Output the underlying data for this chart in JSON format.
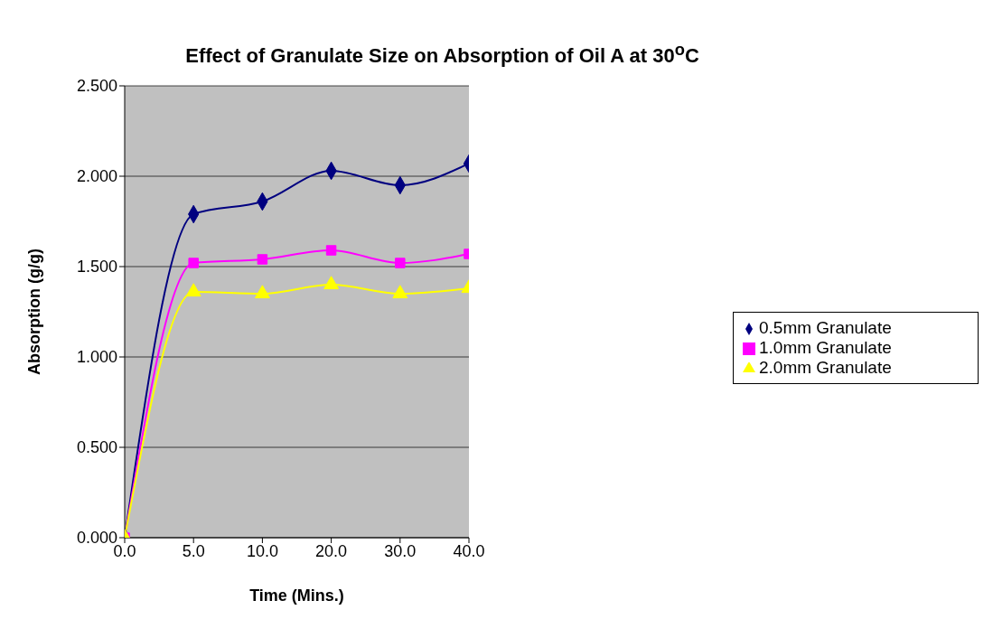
{
  "chart_data": {
    "type": "line",
    "title": "Effect of Granulate Size on Absorption of Oil A at 30$^{o}$C",
    "xlabel": "Time (Mins.)",
    "ylabel": "Absorption (g/g)",
    "categories": [
      "0.0",
      "5.0",
      "10.0",
      "20.0",
      "30.0",
      "40.0"
    ],
    "series": [
      {
        "name": "0.5mm Granulate",
        "color": "#000080",
        "marker": "diamond",
        "values": [
          0,
          1.79,
          1.86,
          2.03,
          1.95,
          2.07
        ]
      },
      {
        "name": "1.0mm Granulate",
        "color": "#ff00ff",
        "marker": "square",
        "values": [
          0,
          1.52,
          1.54,
          1.59,
          1.52,
          1.57
        ]
      },
      {
        "name": "2.0mm Granulate",
        "color": "#ffff00",
        "marker": "triangle",
        "values": [
          0,
          1.36,
          1.35,
          1.4,
          1.35,
          1.38
        ]
      }
    ],
    "ylim": [
      0,
      2.5
    ],
    "yticks": [
      {
        "value": 0,
        "label": "0.000"
      },
      {
        "value": 0.5,
        "label": "0.500"
      },
      {
        "value": 1,
        "label": "1.000"
      },
      {
        "value": 1.5,
        "label": "1.500"
      },
      {
        "value": 2,
        "label": "2.000"
      },
      {
        "value": 2.5,
        "label": "2.500"
      }
    ],
    "grid": "y",
    "legend": "right",
    "line_style": "solid"
  }
}
